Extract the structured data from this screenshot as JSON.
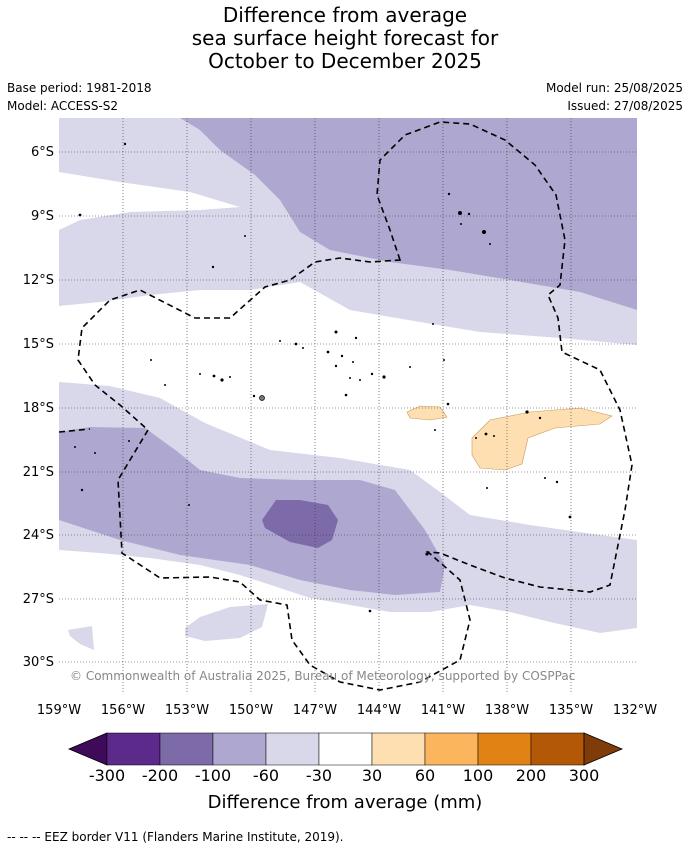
{
  "title_lines": [
    "Difference from average",
    "sea surface height forecast for",
    "October to December 2025"
  ],
  "meta": {
    "base_period": "Base period: 1981-2018",
    "model": "Model: ACCESS-S2",
    "model_run": "Model run: 25/08/2025",
    "issued": "Issued: 27/08/2025"
  },
  "lat_labels": [
    "6°S",
    "9°S",
    "12°S",
    "15°S",
    "18°S",
    "21°S",
    "24°S",
    "27°S",
    "30°S"
  ],
  "lon_labels": [
    "159°W",
    "156°W",
    "153°W",
    "150°W",
    "147°W",
    "144°W",
    "141°W",
    "138°W",
    "135°W",
    "132°W"
  ],
  "copyright": "© Commonwealth of Australia 2025, Bureau of Meteorology, supported by COSPPac",
  "colorbar": {
    "title": "Difference from average (mm)",
    "ticks": [
      "-300",
      "-200",
      "-100",
      "-60",
      "-30",
      "30",
      "60",
      "100",
      "200",
      "300"
    ],
    "colors": [
      "#3f0a5a",
      "#5b2a8a",
      "#7d6aa8",
      "#aea8d0",
      "#d8d8ea",
      "#ffffff",
      "#fedfb2",
      "#fbb55c",
      "#e08214",
      "#b35806",
      "#7f3b08"
    ]
  },
  "footer": "--  --  -- EEZ border V11 (Flanders Marine Institute, 2019)."
}
